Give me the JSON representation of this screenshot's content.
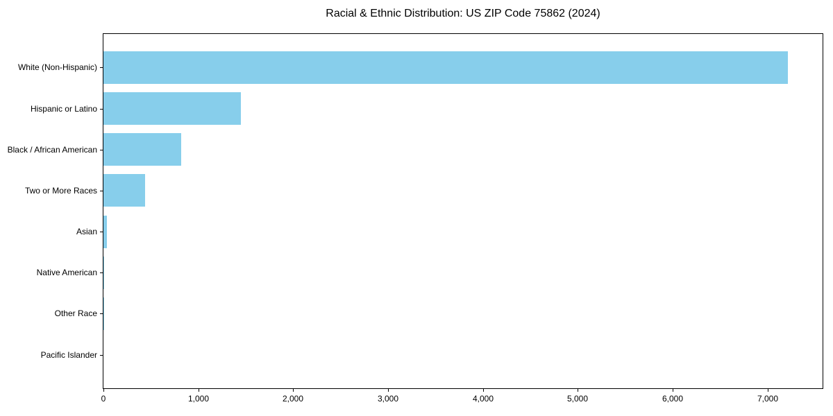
{
  "chart_data": {
    "type": "bar",
    "orientation": "horizontal",
    "title": "Racial & Ethnic Distribution: US ZIP Code 75862 (2024)",
    "categories": [
      "White (Non-Hispanic)",
      "Hispanic or Latino",
      "Black / African American",
      "Two or More Races",
      "Asian",
      "Native American",
      "Other Race",
      "Pacific Islander"
    ],
    "values": [
      7215,
      1446,
      816,
      438,
      35,
      8,
      9,
      0
    ],
    "xlabel": "",
    "ylabel": "",
    "xlim": [
      0,
      7580
    ],
    "x_ticks": [
      0,
      1000,
      2000,
      3000,
      4000,
      5000,
      6000,
      7000
    ],
    "x_tick_labels": [
      "0",
      "1,000",
      "2,000",
      "3,000",
      "4,000",
      "5,000",
      "6,000",
      "7,000"
    ],
    "bar_color": "#87CEEB",
    "axis_color": "#000000",
    "background_color": "#FFFFFF",
    "grid": false,
    "legend": null
  }
}
